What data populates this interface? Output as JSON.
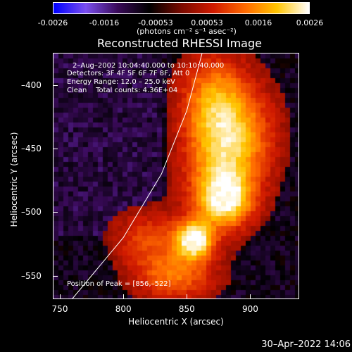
{
  "colorbar": {
    "ticks": [
      "-0.0026",
      "-0.0016",
      "-0.00053",
      "0.00053",
      "0.0016",
      "0.0026"
    ],
    "unit": "(photons cm⁻² s⁻¹ asec⁻²)",
    "colors": [
      "#0000ff",
      "#7b4ff0",
      "#3a0a5a",
      "#000000",
      "#7a0a00",
      "#d01a00",
      "#ff6a00",
      "#ffc400",
      "#ffffff"
    ]
  },
  "chart_data": {
    "type": "heatmap",
    "title": "Reconstructed RHESSI Image",
    "xlabel": "Heliocentric X (arcsec)",
    "ylabel": "Heliocentric Y (arcsec)",
    "xlim": [
      745,
      938
    ],
    "ylim": [
      -568,
      -375
    ],
    "x_ticks": [
      "750",
      "800",
      "850",
      "900"
    ],
    "y_ticks": [
      "-400",
      "-450",
      "-500",
      "-550"
    ],
    "value_range": [
      -0.0026,
      0.0026
    ],
    "info_lines": [
      "2–Aug–2002 10:04:40.000 to 10:10:40.000",
      "Detectors: 3F 4F 5F 6F 7F 8F, Att 0",
      "Energy Range: 12.0 – 25.0 keV",
      "Clean    Total counts: 4.36E+04"
    ],
    "peak_label": "Position of Peak = [856,–522]",
    "peak": [
      856,
      -522
    ],
    "sources": [
      {
        "x": 856,
        "y": -522,
        "amp": 1.0,
        "sx": 10,
        "sy": 10
      },
      {
        "x": 880,
        "y": -490,
        "amp": 0.75,
        "sx": 14,
        "sy": 14
      },
      {
        "x": 875,
        "y": -460,
        "amp": 0.55,
        "sx": 20,
        "sy": 35
      },
      {
        "x": 870,
        "y": -410,
        "amp": 0.45,
        "sx": 18,
        "sy": 25
      },
      {
        "x": 895,
        "y": -440,
        "amp": 0.4,
        "sx": 20,
        "sy": 30
      },
      {
        "x": 840,
        "y": -550,
        "amp": 0.5,
        "sx": 22,
        "sy": 14
      },
      {
        "x": 820,
        "y": -520,
        "amp": 0.35,
        "sx": 20,
        "sy": 15
      }
    ],
    "limb_curve": [
      [
        760,
        -568
      ],
      [
        800,
        -520
      ],
      [
        830,
        -470
      ],
      [
        850,
        -420
      ],
      [
        862,
        -375
      ]
    ]
  },
  "footer": {
    "timestamp": "30–Apr–2022 14:06"
  }
}
